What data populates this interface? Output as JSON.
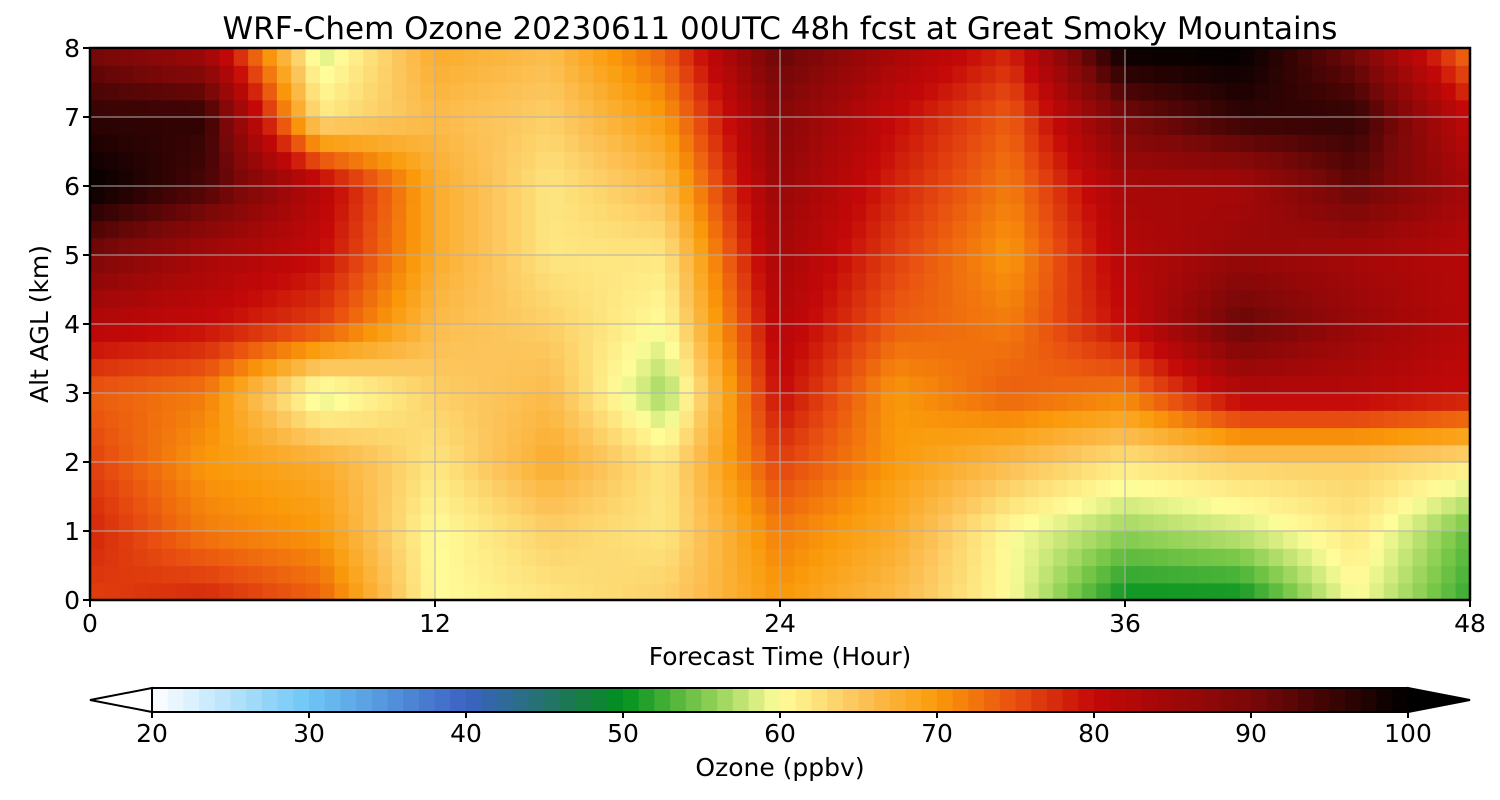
{
  "chart_data": {
    "type": "heatmap",
    "title": "WRF-Chem Ozone  20230611 00UTC 48h fcst at Great Smoky Mountains",
    "xlabel": "Forecast Time (Hour)",
    "ylabel": "Alt AGL (km)",
    "xlim": [
      0,
      48
    ],
    "ylim": [
      0,
      8
    ],
    "xticks": [
      0,
      12,
      24,
      36,
      48
    ],
    "yticks": [
      0,
      1,
      2,
      3,
      4,
      5,
      6,
      7,
      8
    ],
    "grid": true,
    "x": [
      0,
      4,
      8,
      12,
      16,
      20,
      24,
      28,
      32,
      36,
      40,
      44,
      48
    ],
    "y": [
      0,
      1,
      2,
      3,
      4,
      5,
      6,
      7,
      8
    ],
    "z": [
      [
        76,
        78,
        74,
        60,
        62,
        64,
        70,
        66,
        60,
        50,
        50,
        60,
        52
      ],
      [
        78,
        72,
        70,
        60,
        64,
        62,
        72,
        68,
        60,
        56,
        58,
        62,
        54
      ],
      [
        76,
        70,
        68,
        62,
        68,
        62,
        76,
        70,
        66,
        62,
        64,
        64,
        62
      ],
      [
        74,
        72,
        58,
        64,
        66,
        56,
        80,
        70,
        74,
        72,
        82,
        82,
        80
      ],
      [
        82,
        80,
        76,
        66,
        64,
        60,
        82,
        74,
        72,
        80,
        92,
        86,
        82
      ],
      [
        90,
        84,
        80,
        68,
        62,
        62,
        84,
        76,
        70,
        82,
        86,
        84,
        82
      ],
      [
        100,
        94,
        82,
        68,
        62,
        66,
        86,
        78,
        72,
        84,
        84,
        92,
        84
      ],
      [
        96,
        96,
        62,
        66,
        64,
        70,
        88,
        80,
        74,
        90,
        96,
        96,
        80
      ],
      [
        90,
        84,
        58,
        68,
        66,
        74,
        92,
        84,
        78,
        100,
        100,
        90,
        72
      ]
    ],
    "colorbar": {
      "label": "Ozone  (ppbv)",
      "min": 20,
      "max": 100,
      "ticks": [
        20,
        30,
        40,
        50,
        60,
        70,
        80,
        90,
        100
      ],
      "extend": "both",
      "stops": [
        {
          "v": 20,
          "c": "#ffffff"
        },
        {
          "v": 30,
          "c": "#6ec6f5"
        },
        {
          "v": 40,
          "c": "#3b62c4"
        },
        {
          "v": 47,
          "c": "#1a7a4a"
        },
        {
          "v": 50,
          "c": "#00901e"
        },
        {
          "v": 55,
          "c": "#7cc94a"
        },
        {
          "v": 60,
          "c": "#fffd9a"
        },
        {
          "v": 65,
          "c": "#fcc45a"
        },
        {
          "v": 70,
          "c": "#fa9a0a"
        },
        {
          "v": 75,
          "c": "#e84e10"
        },
        {
          "v": 80,
          "c": "#c40808"
        },
        {
          "v": 90,
          "c": "#7a0808"
        },
        {
          "v": 100,
          "c": "#000000"
        }
      ]
    }
  }
}
